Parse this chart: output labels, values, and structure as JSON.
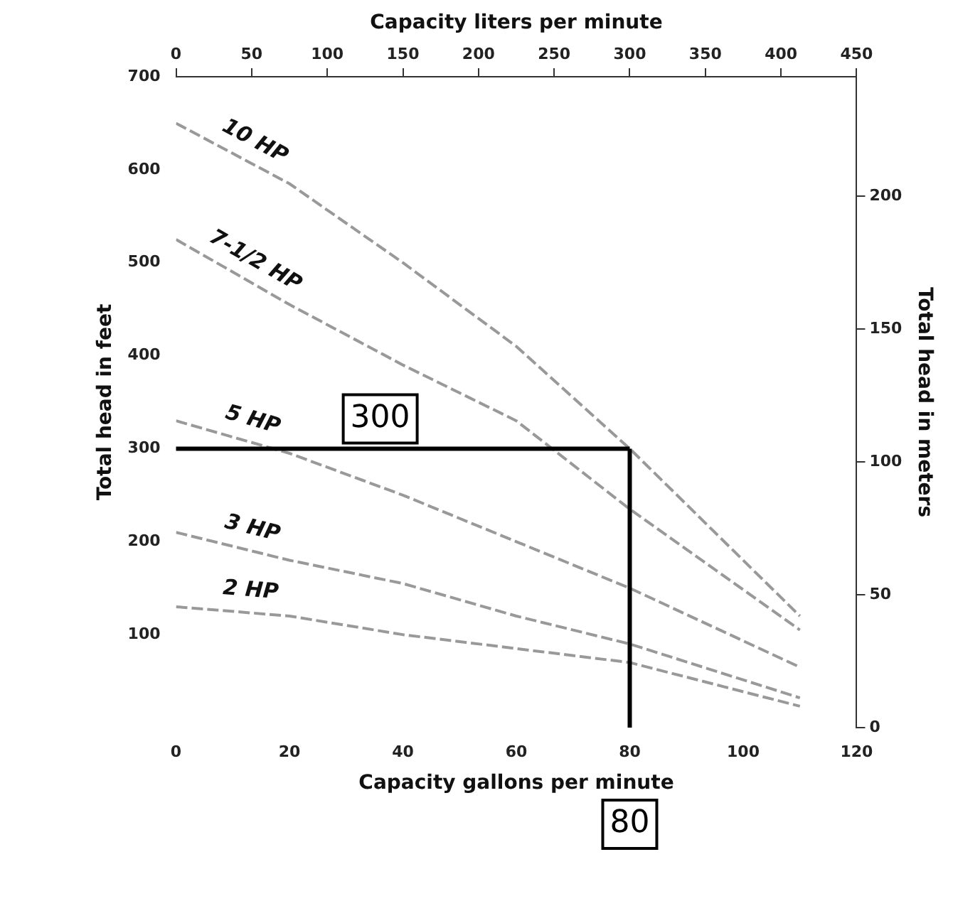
{
  "chart_data": {
    "type": "line",
    "xlabel": "Capacity gallons per minute",
    "ylabel": "Total head in feet",
    "y2label": "Total head in meters",
    "x2label": "Capacity liters per minute",
    "x": [
      0,
      20,
      40,
      60,
      80,
      110
    ],
    "xlim": [
      0,
      120
    ],
    "xticks": [
      0,
      20,
      40,
      60,
      80,
      100,
      120
    ],
    "x2lim": [
      0,
      450
    ],
    "x2ticks": [
      0,
      50,
      100,
      150,
      200,
      250,
      300,
      350,
      400,
      450
    ],
    "ylim": [
      0,
      700
    ],
    "yticks": [
      100,
      200,
      300,
      400,
      500,
      600,
      700
    ],
    "y2lim": [
      0,
      245
    ],
    "y2ticks": [
      0,
      50,
      100,
      150,
      200
    ],
    "series": [
      {
        "name": "10 HP",
        "color": "#999999",
        "values": [
          650,
          585,
          500,
          410,
          300,
          120
        ]
      },
      {
        "name": "7-1/2 HP",
        "color": "#999999",
        "values": [
          525,
          455,
          390,
          330,
          235,
          105
        ]
      },
      {
        "name": "5 HP",
        "color": "#999999",
        "values": [
          330,
          295,
          250,
          200,
          150,
          65
        ]
      },
      {
        "name": "3 HP",
        "color": "#999999",
        "values": [
          210,
          180,
          155,
          120,
          90,
          32
        ]
      },
      {
        "name": "2 HP",
        "color": "#999999",
        "values": [
          130,
          120,
          100,
          85,
          70,
          23
        ]
      }
    ],
    "ref_lines": [
      {
        "axis": "y",
        "value": 300,
        "label": "300",
        "color": "#000000"
      },
      {
        "axis": "x",
        "value": 80,
        "label": "80",
        "color": "#000000"
      }
    ],
    "grid": false,
    "legend": false,
    "marker": "none",
    "line_style": "dashed"
  }
}
